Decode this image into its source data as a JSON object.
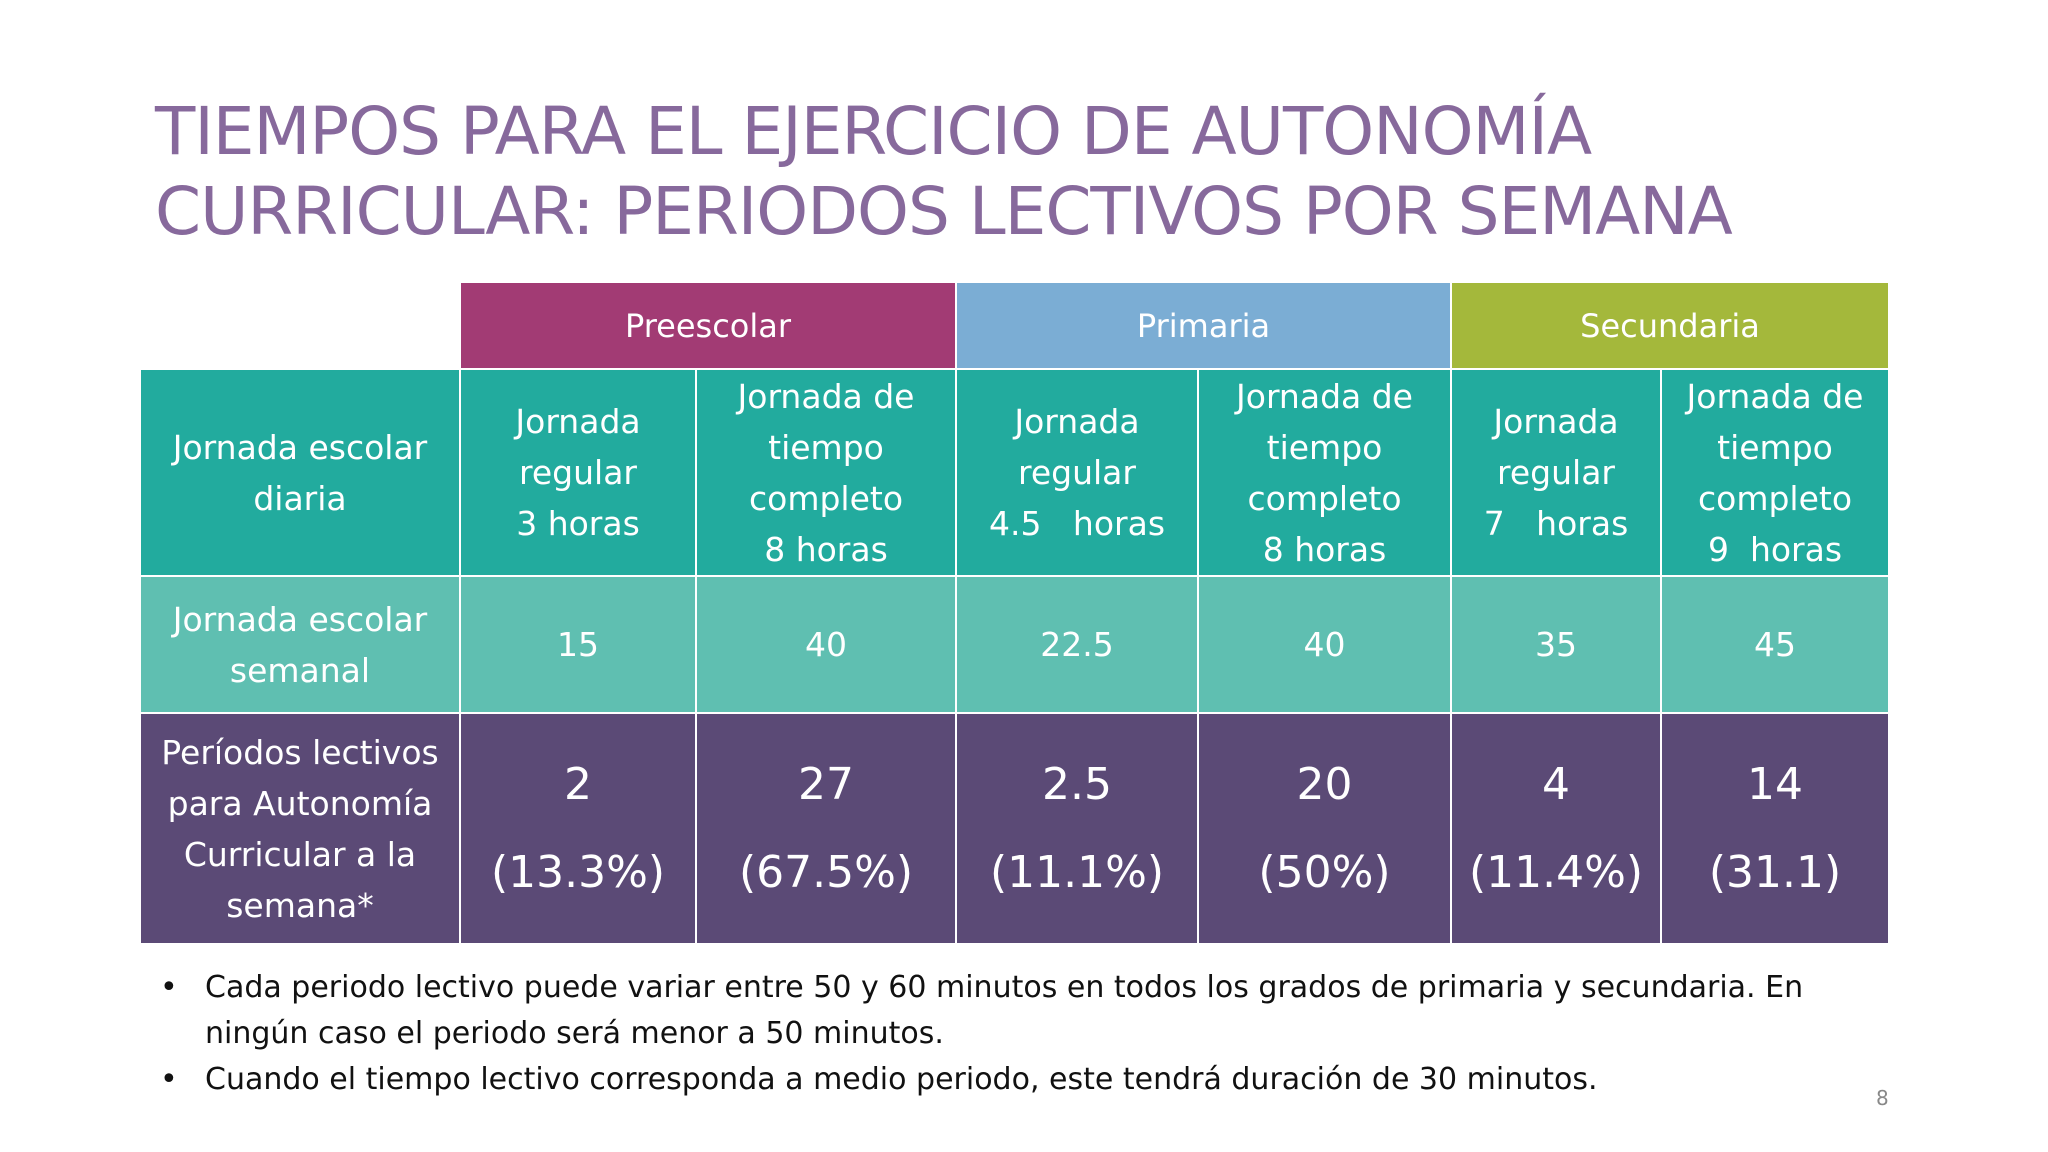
{
  "title": "TIEMPOS PARA EL EJERCICIO DE AUTONOMÍA\nCURRICULAR: PERIODOS LECTIVOS POR SEMANA",
  "table": {
    "groups": [
      "Preescolar",
      "Primaria",
      "Secundaria"
    ],
    "rows": [
      [
        "Jornada escolar\ndiaria",
        "Jornada\nregular\n3 horas",
        "Jornada de\ntiempo\ncompleto\n8 horas",
        "Jornada\nregular\n4.5   horas",
        "Jornada de\ntiempo\ncompleto\n8 horas",
        "Jornada\nregular\n7   horas",
        "Jornada de\ntiempo\ncompleto\n9  horas"
      ],
      [
        "Jornada escolar\nsemanal",
        "15",
        "40",
        "22.5",
        "40",
        "35",
        "45"
      ],
      [
        "Períodos lectivos\npara Autonomía\nCurricular a la\nsemana*",
        "2\n(13.3%)",
        "27\n(67.5%)",
        "2.5\n(11.1%)",
        "20\n(50%)",
        "4\n(11.4%)",
        "14\n(31.1)"
      ]
    ]
  },
  "notes": [
    "Cada periodo lectivo puede variar entre 50 y 60 minutos en todos los grados de primaria y secundaria. En ningún caso el periodo será  menor a 50 minutos.",
    "Cuando el tiempo lectivo corresponda a medio periodo, este tendrá duración de 30 minutos."
  ],
  "page_number": "8"
}
